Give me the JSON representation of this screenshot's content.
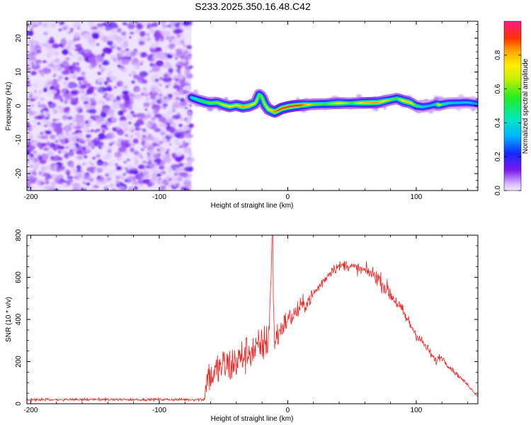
{
  "title": "S233.2025.350.16.48.C42",
  "colors": {
    "axis": "#000000",
    "snr_line": "#ee2222",
    "background": "#ffffff"
  },
  "chart_data": [
    {
      "type": "heatmap",
      "title": "",
      "xlabel": "Height of straight line (km)",
      "ylabel": "Frequency (Hz)",
      "xlim": [
        -203,
        148
      ],
      "ylim": [
        -25,
        25
      ],
      "x_ticks": [
        -200,
        -100,
        0,
        100
      ],
      "x_tick_labels": [
        "-200",
        "-100",
        "0",
        "100"
      ],
      "y_ticks": [
        -20,
        -10,
        0,
        10,
        20
      ],
      "y_tick_labels": [
        "-20",
        "-10",
        "0",
        "10",
        "20"
      ],
      "noise_region_x": [
        -203,
        -75
      ],
      "signal_start_x": -75,
      "ridge": {
        "x": [
          -75,
          -70,
          -65,
          -60,
          -55,
          -50,
          -45,
          -40,
          -35,
          -30,
          -25,
          -22,
          -20,
          -18,
          -15,
          -12,
          -10,
          -7,
          -5,
          -3,
          0,
          5,
          10,
          20,
          30,
          40,
          50,
          60,
          70,
          80,
          85,
          90,
          95,
          100,
          105,
          110,
          115,
          118,
          120,
          125,
          130,
          140,
          148
        ],
        "freq": [
          2.5,
          1.8,
          1.2,
          0.8,
          1.0,
          0.3,
          -0.2,
          0.2,
          -0.3,
          0.0,
          0.8,
          3.5,
          2.5,
          0.5,
          -1.0,
          -1.5,
          -1.8,
          -1.2,
          -0.8,
          -0.6,
          -0.3,
          0.0,
          0.2,
          0.5,
          0.6,
          0.8,
          0.8,
          0.9,
          1.0,
          1.8,
          2.2,
          1.5,
          1.0,
          0.0,
          -0.3,
          0.0,
          0.5,
          0.3,
          0.4,
          0.8,
          0.9,
          1.0,
          0.6
        ],
        "amplitude": [
          0.45,
          0.5,
          0.55,
          0.6,
          0.6,
          0.7,
          0.75,
          0.7,
          0.85,
          0.8,
          0.7,
          0.55,
          0.6,
          0.65,
          0.7,
          0.8,
          0.85,
          0.9,
          0.92,
          0.95,
          0.97,
          0.97,
          0.95,
          0.6,
          0.55,
          0.75,
          0.55,
          0.8,
          0.85,
          0.6,
          0.55,
          0.75,
          0.8,
          0.55,
          0.45,
          0.4,
          0.4,
          0.75,
          0.5,
          0.45,
          0.4,
          0.4,
          0.35
        ]
      },
      "colorbar": {
        "label": "Normalized spectral amplitude",
        "range": [
          0,
          1
        ],
        "ticks": [
          0.0,
          0.2,
          0.4,
          0.6,
          0.8
        ],
        "tick_labels": [
          "0.0",
          "0.2",
          "0.4",
          "0.6",
          "0.8"
        ],
        "colormap": "rainbow (violet at 0 to magenta at 1)"
      }
    },
    {
      "type": "line",
      "title": "",
      "xlabel": "Height of straight line (km)",
      "ylabel": "SNR (10 * v/v)",
      "xlim": [
        -203,
        148
      ],
      "ylim": [
        0,
        800
      ],
      "x_ticks": [
        -200,
        -100,
        0,
        100
      ],
      "x_tick_labels": [
        "-200",
        "-100",
        "0",
        "100"
      ],
      "y_ticks": [
        0,
        200,
        400,
        600,
        800
      ],
      "y_tick_labels": [
        "0",
        "200",
        "400",
        "600",
        "800"
      ],
      "series": [
        {
          "name": "SNR",
          "x": [
            -203,
            -180,
            -150,
            -120,
            -90,
            -70,
            -65,
            -62,
            -60,
            -55,
            -50,
            -45,
            -40,
            -35,
            -30,
            -25,
            -20,
            -15,
            -13,
            -12,
            -11,
            -10,
            -5,
            0,
            5,
            10,
            15,
            20,
            25,
            30,
            35,
            40,
            45,
            50,
            55,
            60,
            65,
            70,
            75,
            80,
            85,
            90,
            95,
            100,
            105,
            110,
            115,
            118,
            120,
            125,
            130,
            135,
            140,
            145,
            148
          ],
          "y": [
            20,
            20,
            20,
            20,
            20,
            20,
            22,
            150,
            120,
            160,
            180,
            180,
            200,
            220,
            250,
            250,
            280,
            300,
            600,
            800,
            400,
            300,
            360,
            400,
            420,
            460,
            480,
            520,
            560,
            600,
            640,
            650,
            660,
            650,
            640,
            630,
            620,
            600,
            560,
            520,
            480,
            430,
            380,
            330,
            290,
            250,
            200,
            220,
            220,
            180,
            150,
            120,
            90,
            55,
            35
          ],
          "noise_amplitude": [
            10,
            10,
            10,
            10,
            10,
            12,
            20,
            150,
            110,
            140,
            150,
            150,
            150,
            150,
            140,
            140,
            140,
            140,
            50,
            10,
            120,
            120,
            90,
            80,
            80,
            70,
            60,
            55,
            45,
            40,
            40,
            40,
            40,
            40,
            45,
            50,
            55,
            60,
            65,
            65,
            60,
            55,
            50,
            45,
            40,
            35,
            35,
            30,
            25,
            20,
            18,
            15,
            12,
            10,
            8
          ]
        }
      ]
    }
  ]
}
